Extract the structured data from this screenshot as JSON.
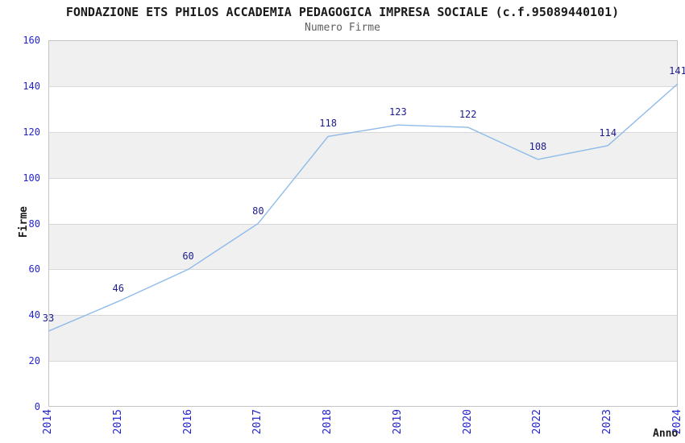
{
  "chart_data": {
    "type": "line",
    "title": "FONDAZIONE ETS PHILOS ACCADEMIA PEDAGOGICA IMPRESA SOCIALE (c.f.95089440101)",
    "subtitle": "Numero Firme",
    "xlabel": "Anno",
    "ylabel": "Firme",
    "categories": [
      "2014",
      "2015",
      "2016",
      "2017",
      "2018",
      "2019",
      "2020",
      "2022",
      "2023",
      "2024"
    ],
    "values": [
      33,
      46,
      60,
      80,
      118,
      123,
      122,
      108,
      114,
      141
    ],
    "ylim": [
      0,
      160
    ],
    "yticks": [
      0,
      20,
      40,
      60,
      80,
      100,
      120,
      140,
      160
    ],
    "grid": "horizontal-bands",
    "legend": "none",
    "colors": {
      "line": "#8fbbe9",
      "data_label": "#1b1b8e",
      "tick_label": "#2424cc",
      "band_gray": "#f0f0f0",
      "band_white": "#ffffff",
      "gridline": "#d8d8d8",
      "plot_border": "#c4c4c4",
      "title": "#1a1a1a",
      "subtitle": "#5f5f5f"
    }
  }
}
